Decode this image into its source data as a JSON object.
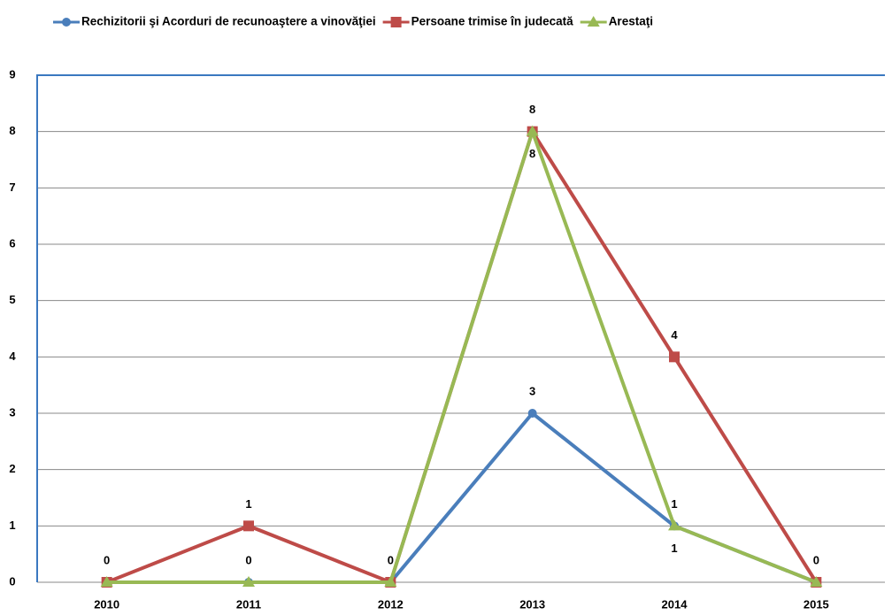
{
  "chart_data": {
    "type": "line",
    "categories": [
      "2010",
      "2011",
      "2012",
      "2013",
      "2014",
      "2015"
    ],
    "series": [
      {
        "name": "Rechizitorii şi Acorduri de recunoaştere a vinovăţiei",
        "color": "#4a7ebb",
        "marker": "circle",
        "values": [
          0,
          0,
          0,
          3,
          1,
          0
        ]
      },
      {
        "name": "Persoane trimise în judecată",
        "color": "#be4b48",
        "marker": "square",
        "values": [
          0,
          1,
          0,
          8,
          4,
          0
        ]
      },
      {
        "name": "Arestaţi",
        "color": "#98b954",
        "marker": "triangle",
        "values": [
          0,
          0,
          0,
          8,
          1,
          0
        ]
      }
    ],
    "ylim": [
      0,
      9
    ],
    "yticks": [
      0,
      1,
      2,
      3,
      4,
      5,
      6,
      7,
      8,
      9
    ],
    "grid": true
  }
}
